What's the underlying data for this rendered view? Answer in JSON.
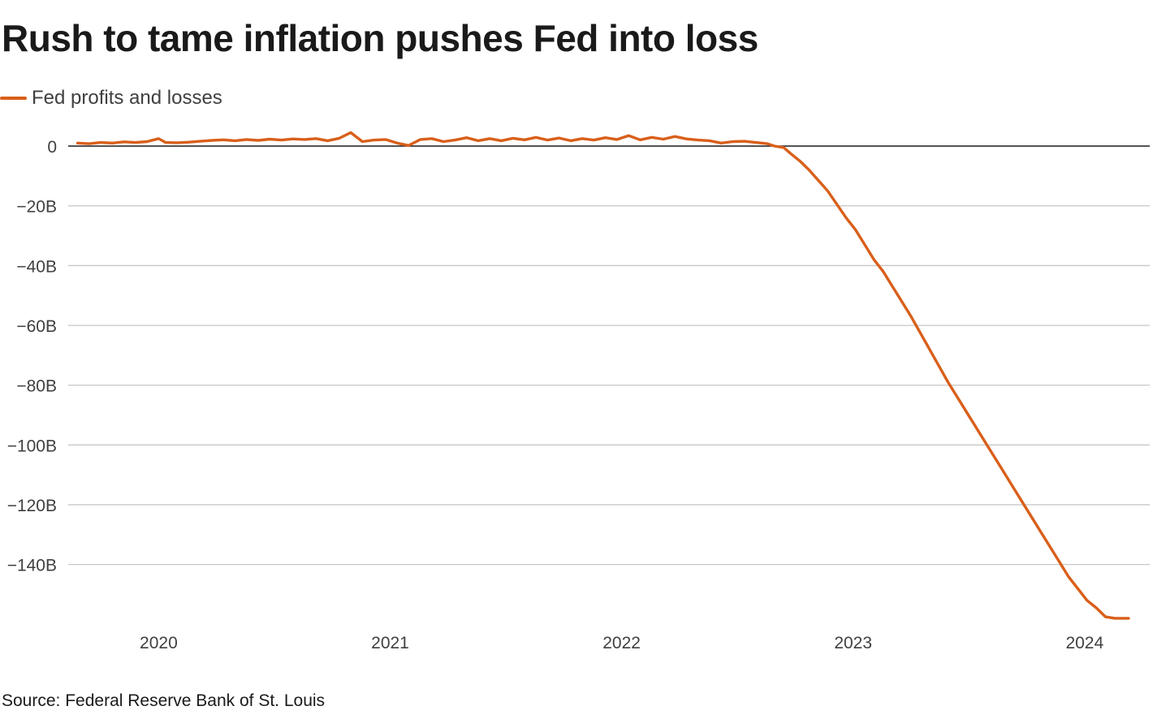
{
  "chart_data": {
    "type": "line",
    "title": "Rush to tame inflation pushes Fed into loss",
    "xlabel": "",
    "ylabel": "",
    "source": "Source: Federal Reserve Bank of St. Louis",
    "legend_position": "top-left",
    "grid": true,
    "ylim": [
      -158,
      5
    ],
    "xlim": [
      2019.63,
      2024.22
    ],
    "y_ticks": [
      {
        "value": 0,
        "label": "0"
      },
      {
        "value": -20,
        "label": "−20B"
      },
      {
        "value": -40,
        "label": "−40B"
      },
      {
        "value": -60,
        "label": "−60B"
      },
      {
        "value": -80,
        "label": "−80B"
      },
      {
        "value": -100,
        "label": "−100B"
      },
      {
        "value": -120,
        "label": "−120B"
      },
      {
        "value": -140,
        "label": "−140B"
      }
    ],
    "x_ticks": [
      {
        "value": 2020.0,
        "label": "2020"
      },
      {
        "value": 2021.0,
        "label": "2021"
      },
      {
        "value": 2022.0,
        "label": "2022"
      },
      {
        "value": 2023.0,
        "label": "2023"
      },
      {
        "value": 2024.0,
        "label": "2024"
      }
    ],
    "series": [
      {
        "name": "Fed profits and losses",
        "color": "#d95f1a",
        "x": [
          2019.65,
          2019.7,
          2019.75,
          2019.8,
          2019.85,
          2019.9,
          2019.95,
          2020.0,
          2020.03,
          2020.08,
          2020.13,
          2020.18,
          2020.23,
          2020.28,
          2020.33,
          2020.38,
          2020.43,
          2020.48,
          2020.53,
          2020.58,
          2020.63,
          2020.68,
          2020.73,
          2020.78,
          2020.83,
          2020.88,
          2020.93,
          2020.98,
          2021.03,
          2021.08,
          2021.13,
          2021.18,
          2021.23,
          2021.28,
          2021.33,
          2021.38,
          2021.43,
          2021.48,
          2021.53,
          2021.58,
          2021.63,
          2021.68,
          2021.73,
          2021.78,
          2021.83,
          2021.88,
          2021.93,
          2021.98,
          2022.03,
          2022.08,
          2022.13,
          2022.18,
          2022.23,
          2022.28,
          2022.33,
          2022.38,
          2022.43,
          2022.48,
          2022.53,
          2022.58,
          2022.63,
          2022.66,
          2022.7,
          2022.73,
          2022.77,
          2022.81,
          2022.85,
          2022.89,
          2022.93,
          2022.97,
          2023.01,
          2023.05,
          2023.09,
          2023.13,
          2023.17,
          2023.21,
          2023.25,
          2023.29,
          2023.33,
          2023.37,
          2023.41,
          2023.45,
          2023.49,
          2023.53,
          2023.57,
          2023.61,
          2023.65,
          2023.69,
          2023.73,
          2023.77,
          2023.81,
          2023.85,
          2023.89,
          2023.93,
          2023.97,
          2024.01,
          2024.05,
          2024.09,
          2024.13,
          2024.17,
          2024.19
        ],
        "values": [
          1.0,
          0.8,
          1.2,
          1.0,
          1.4,
          1.2,
          1.5,
          2.5,
          1.2,
          1.1,
          1.3,
          1.6,
          1.9,
          2.1,
          1.8,
          2.2,
          1.9,
          2.3,
          2.0,
          2.4,
          2.2,
          2.5,
          1.8,
          2.6,
          4.5,
          1.5,
          2.0,
          2.2,
          1.0,
          0.2,
          2.2,
          2.5,
          1.5,
          2.0,
          2.8,
          1.8,
          2.5,
          1.8,
          2.6,
          2.1,
          2.9,
          2.0,
          2.7,
          1.8,
          2.5,
          2.0,
          2.8,
          2.2,
          3.5,
          2.1,
          2.9,
          2.3,
          3.2,
          2.4,
          2.0,
          1.8,
          1.0,
          1.5,
          1.6,
          1.2,
          0.8,
          0.0,
          -0.5,
          -2.5,
          -5.0,
          -8.0,
          -11.5,
          -15.0,
          -19.5,
          -24.0,
          -28.0,
          -33.0,
          -38.0,
          -42.0,
          -47.0,
          -52.0,
          -57.0,
          -62.5,
          -68.0,
          -73.5,
          -79.0,
          -84.0,
          -89.0,
          -94.0,
          -99.0,
          -104.0,
          -109.0,
          -114.0,
          -119.0,
          -124.0,
          -129.0,
          -134.0,
          -139.0,
          -144.0,
          -148.0,
          -152.0,
          -154.5,
          -157.5,
          -158.0,
          -158.0,
          -158.0
        ]
      }
    ]
  }
}
